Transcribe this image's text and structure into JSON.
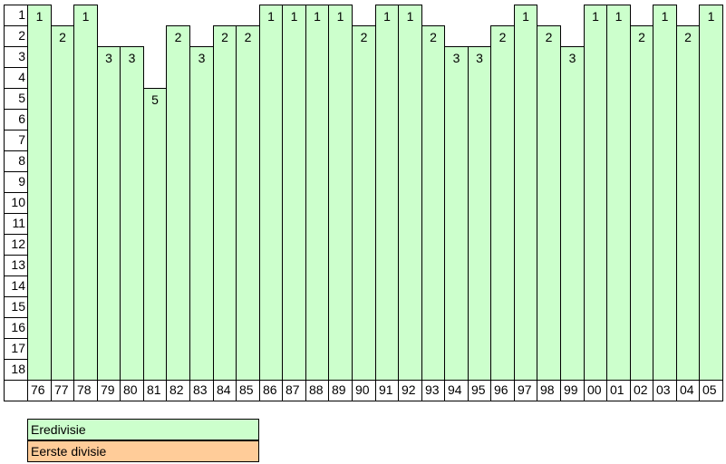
{
  "chart_data": {
    "type": "bar",
    "categories": [
      "76",
      "77",
      "78",
      "79",
      "80",
      "81",
      "82",
      "83",
      "84",
      "85",
      "86",
      "87",
      "88",
      "89",
      "90",
      "91",
      "92",
      "93",
      "94",
      "95",
      "96",
      "97",
      "98",
      "99",
      "00",
      "01",
      "02",
      "03",
      "04",
      "05"
    ],
    "values": [
      1,
      2,
      1,
      3,
      3,
      5,
      2,
      3,
      2,
      2,
      1,
      1,
      1,
      1,
      2,
      1,
      1,
      2,
      3,
      3,
      2,
      1,
      2,
      3,
      1,
      1,
      2,
      1,
      2,
      1
    ],
    "divisions": [
      "Eredivisie",
      "Eredivisie",
      "Eredivisie",
      "Eredivisie",
      "Eredivisie",
      "Eredivisie",
      "Eredivisie",
      "Eredivisie",
      "Eredivisie",
      "Eredivisie",
      "Eredivisie",
      "Eredivisie",
      "Eredivisie",
      "Eredivisie",
      "Eredivisie",
      "Eredivisie",
      "Eredivisie",
      "Eredivisie",
      "Eredivisie",
      "Eredivisie",
      "Eredivisie",
      "Eredivisie",
      "Eredivisie",
      "Eredivisie",
      "Eredivisie",
      "Eredivisie",
      "Eredivisie",
      "Eredivisie",
      "Eredivisie",
      "Eredivisie"
    ],
    "y_ticks": [
      "1",
      "2",
      "3",
      "4",
      "5",
      "6",
      "7",
      "8",
      "9",
      "10",
      "11",
      "12",
      "13",
      "14",
      "15",
      "16",
      "17",
      "18"
    ],
    "ylim": [
      1,
      18
    ],
    "y_inverted": true,
    "legend": [
      {
        "label": "Eredivisie",
        "color": "#ccffcc"
      },
      {
        "label": "Eerste divisie",
        "color": "#ffcc99"
      }
    ],
    "legend_placement": "bottom-left"
  }
}
